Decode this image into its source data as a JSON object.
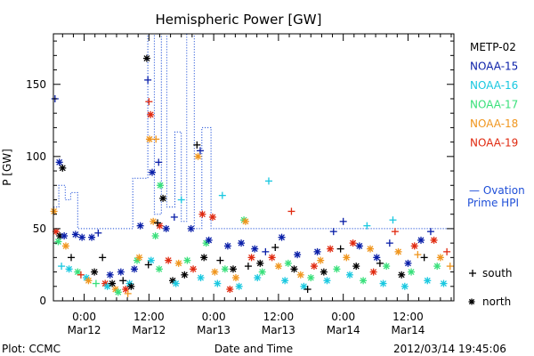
{
  "chart_data": {
    "type": "scatter",
    "title": "Hemispheric Power [GW]",
    "ylabel": "P [GW]",
    "xlabel": "Date and Time",
    "ylim": [
      0,
      185
    ],
    "yticks": [
      0,
      50,
      100,
      150
    ],
    "xticks": [
      {
        "t": 24,
        "line1": "0:00",
        "line2": "Mar12"
      },
      {
        "t": 36,
        "line1": "12:00",
        "line2": "Mar12"
      },
      {
        "t": 48,
        "line1": "0:00",
        "line2": "Mar13"
      },
      {
        "t": 60,
        "line1": "12:00",
        "line2": "Mar13"
      },
      {
        "t": 72,
        "line1": "0:00",
        "line2": "Mar14"
      },
      {
        "t": 84,
        "line1": "12:00",
        "line2": "Mar14"
      }
    ],
    "xlim": [
      18.3,
      92.5
    ],
    "legend_placement": "right",
    "series": [
      {
        "name": "METP-02",
        "color": "#000000"
      },
      {
        "name": "NOAA-15",
        "color": "#0a1fa8"
      },
      {
        "name": "NOAA-16",
        "color": "#19c8e0"
      },
      {
        "name": "NOAA-17",
        "color": "#38e07a"
      },
      {
        "name": "NOAA-18",
        "color": "#f0961e"
      },
      {
        "name": "NOAA-19",
        "color": "#e02a10"
      }
    ],
    "ovation_label_line1": "— Ovation",
    "ovation_label_line2": "Prime HPI",
    "ovation_color": "#1f4fd8",
    "ovation": [
      {
        "t": 18.3,
        "v": 65
      },
      {
        "t": 19.3,
        "v": 65
      },
      {
        "t": 19.3,
        "v": 80
      },
      {
        "t": 20.5,
        "v": 80
      },
      {
        "t": 20.5,
        "v": 70
      },
      {
        "t": 21.5,
        "v": 70
      },
      {
        "t": 21.5,
        "v": 75
      },
      {
        "t": 22.8,
        "v": 75
      },
      {
        "t": 22.8,
        "v": 50
      },
      {
        "t": 33.0,
        "v": 50
      },
      {
        "t": 33.0,
        "v": 85
      },
      {
        "t": 35.8,
        "v": 85
      },
      {
        "t": 35.8,
        "v": 185
      },
      {
        "t": 37.0,
        "v": 185
      },
      {
        "t": 37.0,
        "v": 60
      },
      {
        "t": 38.3,
        "v": 60
      },
      {
        "t": 38.3,
        "v": 185
      },
      {
        "t": 39.3,
        "v": 185
      },
      {
        "t": 39.3,
        "v": 65
      },
      {
        "t": 40.8,
        "v": 65
      },
      {
        "t": 40.8,
        "v": 117
      },
      {
        "t": 42.0,
        "v": 117
      },
      {
        "t": 42.0,
        "v": 55
      },
      {
        "t": 43.0,
        "v": 55
      },
      {
        "t": 43.0,
        "v": 185
      },
      {
        "t": 44.4,
        "v": 185
      },
      {
        "t": 44.4,
        "v": 50
      },
      {
        "t": 45.8,
        "v": 50
      },
      {
        "t": 45.8,
        "v": 120
      },
      {
        "t": 47.5,
        "v": 120
      },
      {
        "t": 47.5,
        "v": 50
      },
      {
        "t": 92.5,
        "v": 50
      }
    ],
    "points": [
      {
        "s": "NOAA-15",
        "m": "plus",
        "t": 18.6,
        "v": 140
      },
      {
        "s": "NOAA-15",
        "m": "star",
        "t": 19.4,
        "v": 96
      },
      {
        "s": "METP-02",
        "m": "star",
        "t": 20.0,
        "v": 92
      },
      {
        "s": "NOAA-19",
        "m": "star",
        "t": 18.8,
        "v": 48
      },
      {
        "s": "METP-02",
        "m": "star",
        "t": 19.5,
        "v": 45
      },
      {
        "s": "NOAA-18",
        "m": "star",
        "t": 18.4,
        "v": 62
      },
      {
        "s": "NOAA-17",
        "m": "star",
        "t": 19.2,
        "v": 41
      },
      {
        "s": "NOAA-15",
        "m": "star",
        "t": 20.3,
        "v": 45
      },
      {
        "s": "NOAA-16",
        "m": "plus",
        "t": 19.8,
        "v": 24
      },
      {
        "s": "NOAA-18",
        "m": "star",
        "t": 20.6,
        "v": 38
      },
      {
        "s": "NOAA-16",
        "m": "star",
        "t": 21.2,
        "v": 22
      },
      {
        "s": "NOAA-15",
        "m": "star",
        "t": 22.4,
        "v": 46
      },
      {
        "s": "METP-02",
        "m": "plus",
        "t": 21.6,
        "v": 30
      },
      {
        "s": "NOAA-17",
        "m": "star",
        "t": 22.8,
        "v": 20
      },
      {
        "s": "NOAA-19",
        "m": "plus",
        "t": 23.4,
        "v": 18
      },
      {
        "s": "NOAA-15",
        "m": "star",
        "t": 23.6,
        "v": 44
      },
      {
        "s": "NOAA-16",
        "m": "star",
        "t": 24.4,
        "v": 16
      },
      {
        "s": "NOAA-18",
        "m": "star",
        "t": 24.8,
        "v": 14
      },
      {
        "s": "NOAA-15",
        "m": "star",
        "t": 25.4,
        "v": 44
      },
      {
        "s": "METP-02",
        "m": "star",
        "t": 25.9,
        "v": 20
      },
      {
        "s": "NOAA-17",
        "m": "plus",
        "t": 26.2,
        "v": 12
      },
      {
        "s": "NOAA-15",
        "m": "plus",
        "t": 26.6,
        "v": 47
      },
      {
        "s": "METP-02",
        "m": "plus",
        "t": 27.4,
        "v": 30
      },
      {
        "s": "NOAA-19",
        "m": "star",
        "t": 27.9,
        "v": 12
      },
      {
        "s": "NOAA-16",
        "m": "star",
        "t": 28.3,
        "v": 10
      },
      {
        "s": "NOAA-15",
        "m": "star",
        "t": 28.8,
        "v": 18
      },
      {
        "s": "METP-02",
        "m": "star",
        "t": 29.2,
        "v": 12
      },
      {
        "s": "NOAA-18",
        "m": "star",
        "t": 29.8,
        "v": 8
      },
      {
        "s": "NOAA-17",
        "m": "star",
        "t": 30.3,
        "v": 6
      },
      {
        "s": "NOAA-15",
        "m": "star",
        "t": 30.8,
        "v": 20
      },
      {
        "s": "METP-02",
        "m": "plus",
        "t": 31.2,
        "v": 14
      },
      {
        "s": "NOAA-19",
        "m": "star",
        "t": 31.7,
        "v": 8
      },
      {
        "s": "NOAA-18",
        "m": "plus",
        "t": 32.1,
        "v": 5
      },
      {
        "s": "NOAA-16",
        "m": "star",
        "t": 32.4,
        "v": 12
      },
      {
        "s": "METP-02",
        "m": "star",
        "t": 32.7,
        "v": 10
      },
      {
        "s": "NOAA-15",
        "m": "star",
        "t": 33.3,
        "v": 22
      },
      {
        "s": "NOAA-17",
        "m": "star",
        "t": 33.8,
        "v": 28
      },
      {
        "s": "NOAA-18",
        "m": "star",
        "t": 34.2,
        "v": 30
      },
      {
        "s": "NOAA-15",
        "m": "star",
        "t": 34.4,
        "v": 52
      },
      {
        "s": "METP-02",
        "m": "star",
        "t": 35.6,
        "v": 168
      },
      {
        "s": "NOAA-15",
        "m": "plus",
        "t": 35.8,
        "v": 153
      },
      {
        "s": "NOAA-19",
        "m": "plus",
        "t": 36.0,
        "v": 138
      },
      {
        "s": "NOAA-19",
        "m": "star",
        "t": 36.3,
        "v": 129
      },
      {
        "s": "NOAA-18",
        "m": "star",
        "t": 36.1,
        "v": 112
      },
      {
        "s": "NOAA-15",
        "m": "star",
        "t": 36.6,
        "v": 89
      },
      {
        "s": "NOAA-18",
        "m": "plus",
        "t": 37.3,
        "v": 112
      },
      {
        "s": "NOAA-15",
        "m": "plus",
        "t": 37.8,
        "v": 96
      },
      {
        "s": "NOAA-17",
        "m": "star",
        "t": 38.1,
        "v": 80
      },
      {
        "s": "METP-02",
        "m": "star",
        "t": 38.6,
        "v": 71
      },
      {
        "s": "NOAA-18",
        "m": "star",
        "t": 36.8,
        "v": 55
      },
      {
        "s": "NOAA-17",
        "m": "star",
        "t": 37.2,
        "v": 45
      },
      {
        "s": "NOAA-19",
        "m": "star",
        "t": 38.0,
        "v": 52
      },
      {
        "s": "METP-02",
        "m": "plus",
        "t": 37.6,
        "v": 54
      },
      {
        "s": "NOAA-15",
        "m": "star",
        "t": 39.2,
        "v": 50
      },
      {
        "s": "NOAA-16",
        "m": "star",
        "t": 36.4,
        "v": 28
      },
      {
        "s": "METP-02",
        "m": "plus",
        "t": 35.9,
        "v": 25
      },
      {
        "s": "NOAA-17",
        "m": "star",
        "t": 37.9,
        "v": 22
      },
      {
        "s": "NOAA-19",
        "m": "star",
        "t": 39.6,
        "v": 28
      },
      {
        "s": "METP-02",
        "m": "star",
        "t": 40.4,
        "v": 14
      },
      {
        "s": "NOAA-16",
        "m": "star",
        "t": 41.0,
        "v": 12
      },
      {
        "s": "NOAA-18",
        "m": "star",
        "t": 41.5,
        "v": 26
      },
      {
        "s": "NOAA-15",
        "m": "plus",
        "t": 40.7,
        "v": 58
      },
      {
        "s": "NOAA-16",
        "m": "plus",
        "t": 42.0,
        "v": 70
      },
      {
        "s": "METP-02",
        "m": "star",
        "t": 42.6,
        "v": 18
      },
      {
        "s": "NOAA-17",
        "m": "star",
        "t": 43.1,
        "v": 28
      },
      {
        "s": "NOAA-15",
        "m": "star",
        "t": 43.8,
        "v": 50
      },
      {
        "s": "NOAA-19",
        "m": "star",
        "t": 44.2,
        "v": 22
      },
      {
        "s": "METP-02",
        "m": "plus",
        "t": 44.9,
        "v": 108
      },
      {
        "s": "NOAA-18",
        "m": "star",
        "t": 45.1,
        "v": 100
      },
      {
        "s": "NOAA-15",
        "m": "plus",
        "t": 45.5,
        "v": 104
      },
      {
        "s": "NOAA-19",
        "m": "star",
        "t": 45.9,
        "v": 60
      },
      {
        "s": "NOAA-16",
        "m": "star",
        "t": 45.6,
        "v": 16
      },
      {
        "s": "METP-02",
        "m": "star",
        "t": 46.2,
        "v": 30
      },
      {
        "s": "NOAA-17",
        "m": "star",
        "t": 46.6,
        "v": 40
      },
      {
        "s": "NOAA-15",
        "m": "star",
        "t": 47.1,
        "v": 42
      },
      {
        "s": "NOAA-19",
        "m": "star",
        "t": 47.8,
        "v": 58
      },
      {
        "s": "NOAA-18",
        "m": "star",
        "t": 48.2,
        "v": 20
      },
      {
        "s": "NOAA-16",
        "m": "star",
        "t": 48.7,
        "v": 12
      },
      {
        "s": "METP-02",
        "m": "plus",
        "t": 49.2,
        "v": 28
      },
      {
        "s": "NOAA-16",
        "m": "plus",
        "t": 49.6,
        "v": 73
      },
      {
        "s": "NOAA-17",
        "m": "star",
        "t": 50.1,
        "v": 22
      },
      {
        "s": "NOAA-15",
        "m": "star",
        "t": 50.6,
        "v": 38
      },
      {
        "s": "NOAA-19",
        "m": "star",
        "t": 51.0,
        "v": 8
      },
      {
        "s": "METP-02",
        "m": "star",
        "t": 51.6,
        "v": 22
      },
      {
        "s": "NOAA-18",
        "m": "star",
        "t": 52.1,
        "v": 16
      },
      {
        "s": "NOAA-16",
        "m": "star",
        "t": 52.7,
        "v": 10
      },
      {
        "s": "NOAA-15",
        "m": "star",
        "t": 53.1,
        "v": 40
      },
      {
        "s": "NOAA-17",
        "m": "star",
        "t": 53.6,
        "v": 56
      },
      {
        "s": "NOAA-18",
        "m": "star",
        "t": 53.9,
        "v": 55
      },
      {
        "s": "METP-02",
        "m": "plus",
        "t": 54.4,
        "v": 24
      },
      {
        "s": "NOAA-19",
        "m": "star",
        "t": 55.0,
        "v": 30
      },
      {
        "s": "NOAA-15",
        "m": "star",
        "t": 55.6,
        "v": 36
      },
      {
        "s": "NOAA-16",
        "m": "star",
        "t": 56.1,
        "v": 16
      },
      {
        "s": "METP-02",
        "m": "star",
        "t": 56.6,
        "v": 26
      },
      {
        "s": "NOAA-17",
        "m": "star",
        "t": 57.0,
        "v": 20
      },
      {
        "s": "NOAA-15",
        "m": "plus",
        "t": 57.6,
        "v": 34
      },
      {
        "s": "NOAA-16",
        "m": "plus",
        "t": 58.2,
        "v": 83
      },
      {
        "s": "NOAA-19",
        "m": "star",
        "t": 58.8,
        "v": 30
      },
      {
        "s": "METP-02",
        "m": "plus",
        "t": 59.4,
        "v": 37
      },
      {
        "s": "NOAA-18",
        "m": "star",
        "t": 60.0,
        "v": 24
      },
      {
        "s": "NOAA-15",
        "m": "star",
        "t": 60.6,
        "v": 44
      },
      {
        "s": "NOAA-16",
        "m": "star",
        "t": 61.2,
        "v": 14
      },
      {
        "s": "NOAA-17",
        "m": "star",
        "t": 61.8,
        "v": 26
      },
      {
        "s": "NOAA-19",
        "m": "plus",
        "t": 62.4,
        "v": 62
      },
      {
        "s": "METP-02",
        "m": "star",
        "t": 62.9,
        "v": 22
      },
      {
        "s": "NOAA-15",
        "m": "star",
        "t": 63.5,
        "v": 32
      },
      {
        "s": "NOAA-18",
        "m": "star",
        "t": 64.1,
        "v": 18
      },
      {
        "s": "NOAA-16",
        "m": "star",
        "t": 64.7,
        "v": 10
      },
      {
        "s": "METP-02",
        "m": "plus",
        "t": 65.4,
        "v": 8
      },
      {
        "s": "NOAA-17",
        "m": "star",
        "t": 66.0,
        "v": 16
      },
      {
        "s": "NOAA-19",
        "m": "star",
        "t": 66.6,
        "v": 24
      },
      {
        "s": "NOAA-15",
        "m": "star",
        "t": 67.2,
        "v": 34
      },
      {
        "s": "NOAA-18",
        "m": "star",
        "t": 67.8,
        "v": 28
      },
      {
        "s": "METP-02",
        "m": "star",
        "t": 68.4,
        "v": 20
      },
      {
        "s": "NOAA-16",
        "m": "star",
        "t": 69.0,
        "v": 14
      },
      {
        "s": "NOAA-19",
        "m": "star",
        "t": 69.6,
        "v": 36
      },
      {
        "s": "NOAA-15",
        "m": "plus",
        "t": 70.2,
        "v": 48
      },
      {
        "s": "NOAA-17",
        "m": "star",
        "t": 70.8,
        "v": 22
      },
      {
        "s": "METP-02",
        "m": "plus",
        "t": 71.5,
        "v": 36
      },
      {
        "s": "NOAA-15",
        "m": "plus",
        "t": 72.0,
        "v": 55
      },
      {
        "s": "NOAA-18",
        "m": "star",
        "t": 72.6,
        "v": 30
      },
      {
        "s": "NOAA-16",
        "m": "star",
        "t": 73.2,
        "v": 18
      },
      {
        "s": "NOAA-19",
        "m": "star",
        "t": 73.8,
        "v": 40
      },
      {
        "s": "METP-02",
        "m": "star",
        "t": 74.4,
        "v": 24
      },
      {
        "s": "NOAA-15",
        "m": "star",
        "t": 75.0,
        "v": 38
      },
      {
        "s": "NOAA-17",
        "m": "star",
        "t": 75.7,
        "v": 14
      },
      {
        "s": "NOAA-16",
        "m": "plus",
        "t": 76.4,
        "v": 52
      },
      {
        "s": "NOAA-18",
        "m": "star",
        "t": 77.0,
        "v": 36
      },
      {
        "s": "NOAA-19",
        "m": "star",
        "t": 77.6,
        "v": 20
      },
      {
        "s": "NOAA-15",
        "m": "star",
        "t": 78.2,
        "v": 30
      },
      {
        "s": "METP-02",
        "m": "plus",
        "t": 78.8,
        "v": 26
      },
      {
        "s": "NOAA-16",
        "m": "star",
        "t": 79.4,
        "v": 12
      },
      {
        "s": "NOAA-17",
        "m": "star",
        "t": 80.0,
        "v": 24
      },
      {
        "s": "NOAA-15",
        "m": "plus",
        "t": 80.6,
        "v": 40
      },
      {
        "s": "NOAA-16",
        "m": "plus",
        "t": 81.2,
        "v": 56
      },
      {
        "s": "NOAA-19",
        "m": "plus",
        "t": 81.6,
        "v": 48
      },
      {
        "s": "NOAA-18",
        "m": "star",
        "t": 82.2,
        "v": 34
      },
      {
        "s": "METP-02",
        "m": "star",
        "t": 82.8,
        "v": 18
      },
      {
        "s": "NOAA-16",
        "m": "star",
        "t": 83.4,
        "v": 10
      },
      {
        "s": "NOAA-15",
        "m": "star",
        "t": 84.0,
        "v": 26
      },
      {
        "s": "NOAA-17",
        "m": "star",
        "t": 84.6,
        "v": 20
      },
      {
        "s": "NOAA-19",
        "m": "star",
        "t": 85.2,
        "v": 38
      },
      {
        "s": "NOAA-18",
        "m": "plus",
        "t": 85.8,
        "v": 32
      },
      {
        "s": "NOAA-15",
        "m": "star",
        "t": 86.4,
        "v": 42
      },
      {
        "s": "METP-02",
        "m": "plus",
        "t": 87.0,
        "v": 30
      },
      {
        "s": "NOAA-16",
        "m": "star",
        "t": 87.6,
        "v": 14
      },
      {
        "s": "NOAA-15",
        "m": "plus",
        "t": 88.2,
        "v": 48
      },
      {
        "s": "NOAA-19",
        "m": "star",
        "t": 88.8,
        "v": 42
      },
      {
        "s": "NOAA-17",
        "m": "star",
        "t": 89.4,
        "v": 24
      },
      {
        "s": "NOAA-18",
        "m": "star",
        "t": 90.0,
        "v": 30
      },
      {
        "s": "NOAA-16",
        "m": "star",
        "t": 90.6,
        "v": 12
      },
      {
        "s": "NOAA-19",
        "m": "plus",
        "t": 91.2,
        "v": 34
      },
      {
        "s": "NOAA-18",
        "m": "plus",
        "t": 91.8,
        "v": 24
      }
    ]
  },
  "marker_legend": {
    "plus_label": "south",
    "star_label": "north"
  },
  "footer": {
    "plot_credit": "Plot: CCMC",
    "timestamp": "2012/03/14 19:45:06"
  }
}
